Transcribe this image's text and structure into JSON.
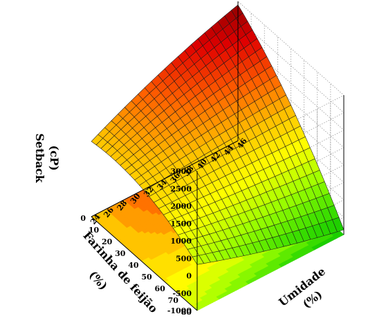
{
  "chart_data": {
    "type": "surface3d",
    "title": "",
    "zlabel": [
      "Setback",
      "(cP)"
    ],
    "xlabel": [
      "Farinha de feijão",
      "(%)"
    ],
    "ylabel": [
      "Umidade",
      "(%)"
    ],
    "x_ticks": [
      0,
      10,
      20,
      30,
      40,
      50,
      60,
      70,
      80
    ],
    "y_ticks": [
      24,
      26,
      28,
      30,
      32,
      34,
      36,
      38,
      40,
      42,
      44,
      46
    ],
    "z_ticks": [
      -1000,
      -500,
      0,
      500,
      1000,
      1500,
      2000,
      2500,
      3000
    ],
    "xlim": [
      0,
      80
    ],
    "ylim": [
      24,
      46
    ],
    "zlim": [
      -1000,
      3000
    ],
    "corner_values": [
      {
        "farinha": 0,
        "umidade": 24,
        "setback": 1160
      },
      {
        "farinha": 80,
        "umidade": 24,
        "setback": 320
      },
      {
        "farinha": 0,
        "umidade": 46,
        "setback": 2900
      },
      {
        "farinha": 80,
        "umidade": 46,
        "setback": -860
      }
    ],
    "grid": true,
    "colormap": [
      "#00c000",
      "#40e000",
      "#a0ff00",
      "#ffff00",
      "#ffc000",
      "#ff6000",
      "#e00000",
      "#800000"
    ]
  }
}
